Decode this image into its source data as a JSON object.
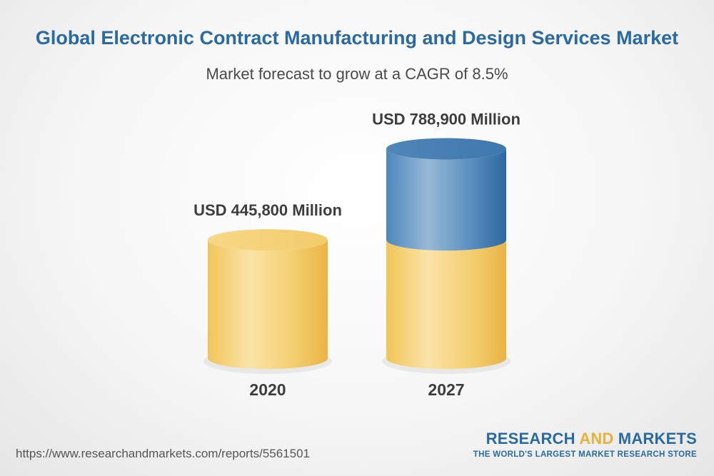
{
  "header": {
    "title": "Global Electronic Contract Manufacturing and Design Services Market",
    "subtitle": "Market forecast to grow at a CAGR of 8.5%"
  },
  "chart_data": {
    "type": "bar",
    "style": "3d-cylinder",
    "categories": [
      "2020",
      "2027"
    ],
    "values": [
      445800,
      788900
    ],
    "value_labels": [
      "USD 445,800 Million",
      "USD 788,900 Million"
    ],
    "title": "Global Electronic Contract Manufacturing and Design Services Market",
    "subtitle": "Market forecast to grow at a CAGR of 8.5%",
    "xlabel": "",
    "ylabel": "",
    "grid": false,
    "legend": "none",
    "colors": {
      "base_segment": "#f2c961",
      "growth_segment": "#3d78ad"
    }
  },
  "footer": {
    "source_url": "https://www.researchandmarkets.com/reports/5561501",
    "logo_part1": "RESEARCH ",
    "logo_part2": "AND",
    "logo_part3": " MARKETS",
    "logo_tagline": "THE WORLD'S LARGEST MARKET RESEARCH STORE"
  }
}
